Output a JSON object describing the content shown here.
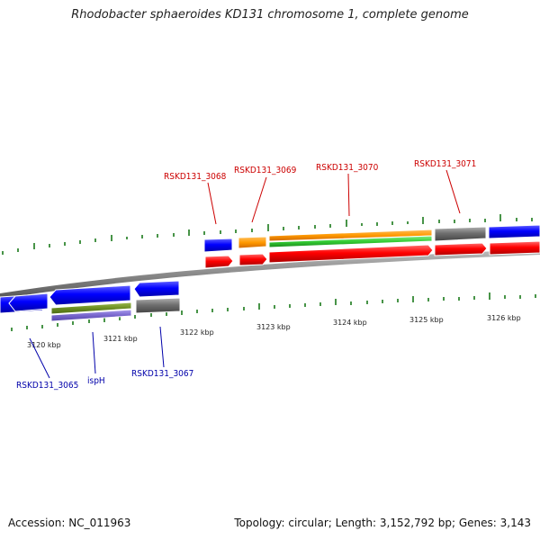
{
  "title": "Rhodobacter sphaeroides KD131 chromosome 1, complete genome",
  "footer": {
    "accession": "Accession: NC_011963",
    "summary": "Topology: circular; Length: 3,152,792 bp; Genes: 3,143"
  },
  "scale_labels": [
    "3120 kbp",
    "3121 kbp",
    "3122 kbp",
    "3123 kbp",
    "3124 kbp",
    "3125 kbp",
    "3126 kbp"
  ],
  "labels_forward": [
    "RSKD131_3068",
    "RSKD131_3069",
    "RSKD131_3070",
    "RSKD131_3071"
  ],
  "labels_reverse": [
    "RSKD131_3065",
    "ispH",
    "RSKD131_3067"
  ],
  "colors": {
    "cds": "#0000ff",
    "gene": "#ff0000",
    "other": "#707070",
    "orange": "#ff9900",
    "green": "#33cc33",
    "olive": "#6b8e23",
    "purple": "#7766cc",
    "tick": "#1a7a1a",
    "backbone": "#8a8a8a",
    "label_forward": "#cc0000",
    "label_reverse": "#0000aa"
  }
}
